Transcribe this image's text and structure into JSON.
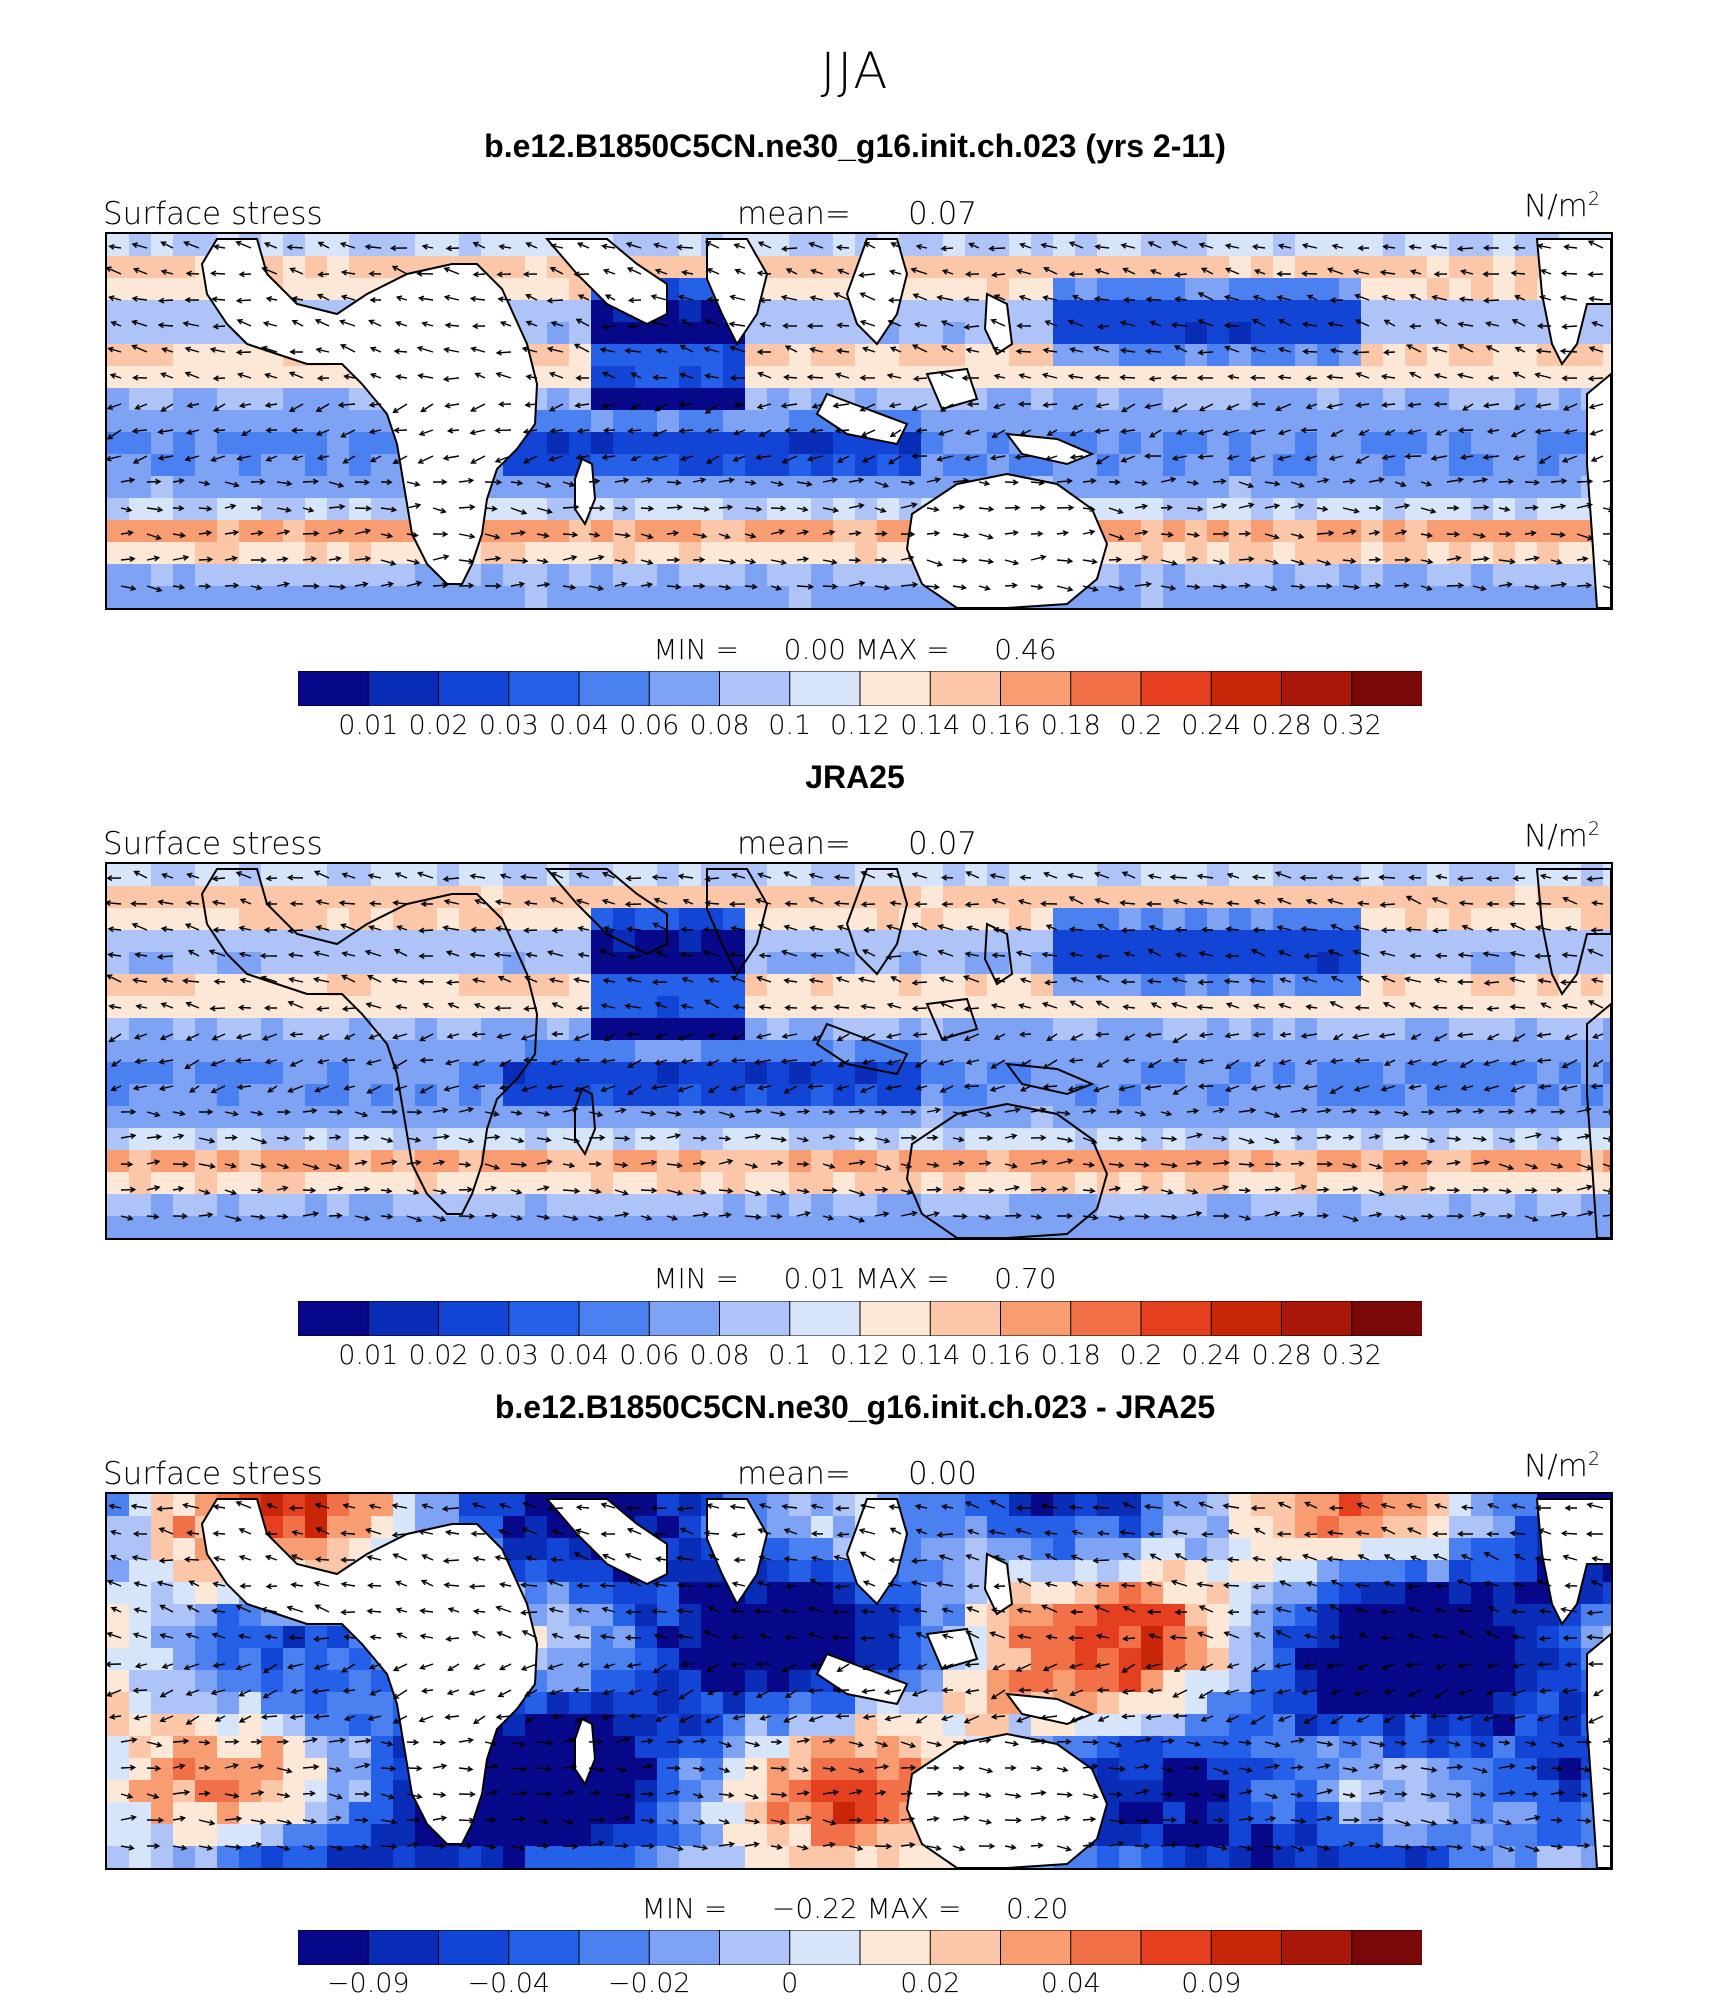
{
  "season": "JJA",
  "palette": [
    "#08088a",
    "#0a2db8",
    "#1245d6",
    "#2460e8",
    "#4b80f0",
    "#7ea3f4",
    "#aec4f8",
    "#d6e5fa",
    "#fde8d8",
    "#fcc6a8",
    "#f89c72",
    "#f27048",
    "#e4401f",
    "#c92508",
    "#a8170a",
    "#7a0808"
  ],
  "land_color": "#ffffff",
  "panels": [
    {
      "id": "model",
      "title": "b.e12.B1850C5CN.ne30_g16.init.ch.023 (yrs 2-11)",
      "left_label": "Surface stress",
      "mean_label": "mean=",
      "mean_value": "0.07",
      "units_base": "N/m",
      "units_exp": "2",
      "min_label": "MIN =",
      "min_value": "0.00",
      "max_label": "MAX =",
      "max_value": "0.46",
      "colorbar_ticks": [
        "0.01",
        "0.02",
        "0.03",
        "0.04",
        "0.06",
        "0.08",
        "0.1",
        "0.12",
        "0.14",
        "0.16",
        "0.18",
        "0.2",
        "0.24",
        "0.28",
        "0.32"
      ],
      "field_style": "mean",
      "land_masked": true
    },
    {
      "id": "obs",
      "title": "JRA25",
      "left_label": "Surface stress",
      "mean_label": "mean=",
      "mean_value": "0.07",
      "units_base": "N/m",
      "units_exp": "2",
      "min_label": "MIN =",
      "min_value": "0.01",
      "max_label": "MAX =",
      "max_value": "0.70",
      "colorbar_ticks": [
        "0.01",
        "0.02",
        "0.03",
        "0.04",
        "0.06",
        "0.08",
        "0.1",
        "0.12",
        "0.14",
        "0.16",
        "0.18",
        "0.2",
        "0.24",
        "0.28",
        "0.32"
      ],
      "field_style": "mean",
      "land_masked": false
    },
    {
      "id": "diff",
      "title": "b.e12.B1850C5CN.ne30_g16.init.ch.023 - JRA25",
      "left_label": "Surface stress",
      "mean_label": "mean=",
      "mean_value": "0.00",
      "units_base": "N/m",
      "units_exp": "2",
      "min_label": "MIN =",
      "min_value": "−0.22",
      "max_label": "MAX =",
      "max_value": "0.20",
      "colorbar_ticks": [
        "−0.09",
        "−0.04",
        "−0.02",
        "0",
        "0.02",
        "0.04",
        "0.09"
      ],
      "colorbar_tick_boundaries": [
        1,
        3,
        5,
        7,
        9,
        11,
        13
      ],
      "field_style": "diff",
      "land_masked": true
    }
  ]
}
